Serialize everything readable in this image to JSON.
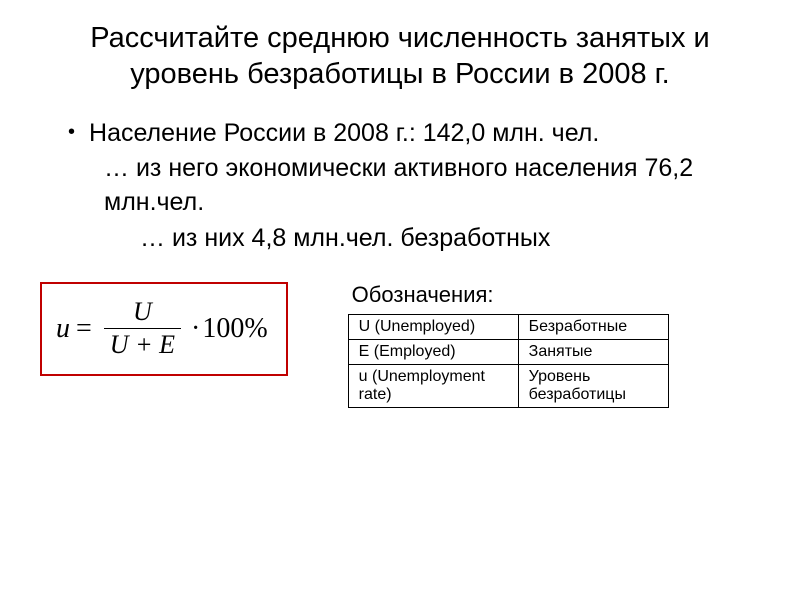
{
  "title": "Рассчитайте среднюю численность занятых и уровень безработицы в России в 2008 г.",
  "bullet1": "Население России в 2008 г.: 142,0  млн. чел.",
  "line2": "… из него экономически активного населения 76,2 млн.чел.",
  "line3": "… из них 4,8 млн.чел. безработных",
  "formula": {
    "lhs": "u",
    "numerator": "U",
    "denominator": "U + E",
    "tail": "100%"
  },
  "legend": {
    "title": "Обозначения:",
    "rows": [
      {
        "sym": "U (Unemployed)",
        "meaning": "Безработные"
      },
      {
        "sym": "E (Employed)",
        "meaning": "Занятые"
      },
      {
        "sym": "u (Unemployment rate)",
        "meaning": "Уровень безработицы"
      }
    ]
  },
  "colors": {
    "formula_border": "#c00000",
    "text": "#000000",
    "background": "#ffffff"
  }
}
